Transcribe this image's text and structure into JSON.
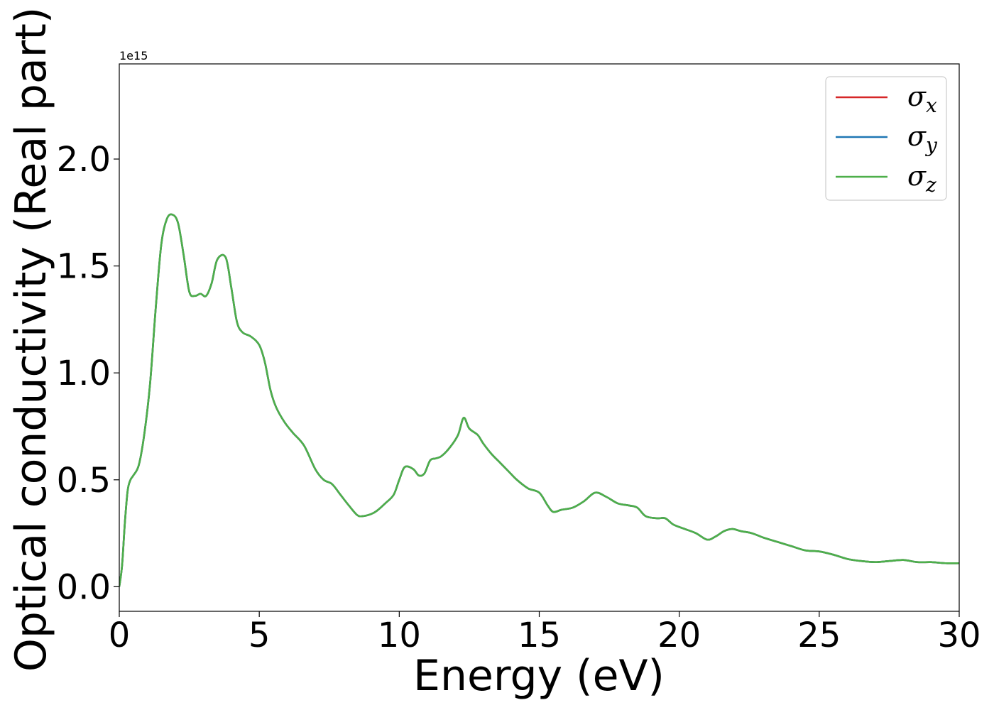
{
  "chart_data": {
    "type": "line",
    "title": "",
    "xlabel": "Energy (eV)",
    "ylabel": "Optical conductivity (Real part)",
    "y_offset_label": "1e15",
    "y_multiplier": 1000000000000000.0,
    "xlim": [
      0,
      30
    ],
    "ylim": [
      -0.115,
      2.445
    ],
    "x_ticks": [
      0,
      5,
      10,
      15,
      20,
      25,
      30
    ],
    "x_tick_labels": [
      "0",
      "5",
      "10",
      "15",
      "20",
      "25",
      "30"
    ],
    "y_ticks": [
      0.0,
      0.5,
      1.0,
      1.5,
      2.0
    ],
    "y_tick_labels": [
      "0.0",
      "0.5",
      "1.0",
      "1.5",
      "2.0"
    ],
    "grid": false,
    "legend": "top-right",
    "legend_entries": [
      {
        "base": "σ",
        "sub": "x",
        "color": "#d62728"
      },
      {
        "base": "σ",
        "sub": "y",
        "color": "#1f77b4"
      },
      {
        "base": "σ",
        "sub": "z",
        "color": "#4daf4a"
      }
    ],
    "x": [
      0,
      0.1,
      0.2,
      0.3,
      0.4,
      0.5,
      0.7,
      0.9,
      1.1,
      1.3,
      1.5,
      1.7,
      1.9,
      2.1,
      2.3,
      2.5,
      2.7,
      2.9,
      3.1,
      3.3,
      3.5,
      3.8,
      4.0,
      4.2,
      4.4,
      4.7,
      5.0,
      5.2,
      5.4,
      5.6,
      5.9,
      6.2,
      6.6,
      7.0,
      7.3,
      7.6,
      7.9,
      8.2,
      8.5,
      8.7,
      9.0,
      9.2,
      9.5,
      9.8,
      10.0,
      10.2,
      10.5,
      10.7,
      10.9,
      11.1,
      11.3,
      11.5,
      11.8,
      12.1,
      12.3,
      12.5,
      12.8,
      13.0,
      13.3,
      13.6,
      13.9,
      14.2,
      14.6,
      15.0,
      15.3,
      15.5,
      15.8,
      16.2,
      16.6,
      17.0,
      17.4,
      17.8,
      18.2,
      18.5,
      18.8,
      19.2,
      19.5,
      19.8,
      20.2,
      20.6,
      21.0,
      21.3,
      21.6,
      21.9,
      22.2,
      22.6,
      23.0,
      23.5,
      24.0,
      24.5,
      25.0,
      25.5,
      26.0,
      26.5,
      27.0,
      27.5,
      28.0,
      28.5,
      29.0,
      29.5,
      30.0
    ],
    "series": [
      {
        "name": "σx",
        "color": "#d62728",
        "values": [
          0.0,
          0.1,
          0.3,
          0.45,
          0.5,
          0.52,
          0.57,
          0.72,
          0.95,
          1.3,
          1.6,
          1.72,
          1.74,
          1.7,
          1.55,
          1.38,
          1.36,
          1.37,
          1.36,
          1.42,
          1.53,
          1.54,
          1.4,
          1.24,
          1.19,
          1.17,
          1.13,
          1.05,
          0.92,
          0.84,
          0.77,
          0.72,
          0.66,
          0.55,
          0.5,
          0.48,
          0.43,
          0.38,
          0.335,
          0.33,
          0.34,
          0.355,
          0.39,
          0.43,
          0.5,
          0.56,
          0.55,
          0.52,
          0.53,
          0.59,
          0.6,
          0.61,
          0.65,
          0.71,
          0.79,
          0.74,
          0.71,
          0.67,
          0.62,
          0.58,
          0.54,
          0.5,
          0.46,
          0.44,
          0.38,
          0.35,
          0.36,
          0.37,
          0.4,
          0.44,
          0.42,
          0.39,
          0.38,
          0.37,
          0.33,
          0.32,
          0.32,
          0.29,
          0.27,
          0.25,
          0.22,
          0.235,
          0.26,
          0.27,
          0.26,
          0.25,
          0.23,
          0.21,
          0.19,
          0.17,
          0.165,
          0.15,
          0.13,
          0.12,
          0.115,
          0.12,
          0.125,
          0.115,
          0.115,
          0.11,
          0.11
        ]
      },
      {
        "name": "σy",
        "color": "#1f77b4",
        "values": [
          0.0,
          0.1,
          0.3,
          0.45,
          0.5,
          0.52,
          0.57,
          0.72,
          0.95,
          1.3,
          1.6,
          1.72,
          1.74,
          1.7,
          1.55,
          1.38,
          1.36,
          1.37,
          1.36,
          1.42,
          1.53,
          1.54,
          1.4,
          1.24,
          1.19,
          1.17,
          1.13,
          1.05,
          0.92,
          0.84,
          0.77,
          0.72,
          0.66,
          0.55,
          0.5,
          0.48,
          0.43,
          0.38,
          0.335,
          0.33,
          0.34,
          0.355,
          0.39,
          0.43,
          0.5,
          0.56,
          0.55,
          0.52,
          0.53,
          0.59,
          0.6,
          0.61,
          0.65,
          0.71,
          0.79,
          0.74,
          0.71,
          0.67,
          0.62,
          0.58,
          0.54,
          0.5,
          0.46,
          0.44,
          0.38,
          0.35,
          0.36,
          0.37,
          0.4,
          0.44,
          0.42,
          0.39,
          0.38,
          0.37,
          0.33,
          0.32,
          0.32,
          0.29,
          0.27,
          0.25,
          0.22,
          0.235,
          0.26,
          0.27,
          0.26,
          0.25,
          0.23,
          0.21,
          0.19,
          0.17,
          0.165,
          0.15,
          0.13,
          0.12,
          0.115,
          0.12,
          0.125,
          0.115,
          0.115,
          0.11,
          0.11
        ]
      },
      {
        "name": "σz",
        "color": "#4daf4a",
        "values": [
          0.0,
          0.1,
          0.3,
          0.45,
          0.5,
          0.52,
          0.57,
          0.72,
          0.95,
          1.3,
          1.6,
          1.72,
          1.74,
          1.7,
          1.55,
          1.38,
          1.36,
          1.37,
          1.36,
          1.42,
          1.53,
          1.54,
          1.4,
          1.24,
          1.19,
          1.17,
          1.13,
          1.05,
          0.92,
          0.84,
          0.77,
          0.72,
          0.66,
          0.55,
          0.5,
          0.48,
          0.43,
          0.38,
          0.335,
          0.33,
          0.34,
          0.355,
          0.39,
          0.43,
          0.5,
          0.56,
          0.55,
          0.52,
          0.53,
          0.59,
          0.6,
          0.61,
          0.65,
          0.71,
          0.79,
          0.74,
          0.71,
          0.67,
          0.62,
          0.58,
          0.54,
          0.5,
          0.46,
          0.44,
          0.38,
          0.35,
          0.36,
          0.37,
          0.4,
          0.44,
          0.42,
          0.39,
          0.38,
          0.37,
          0.33,
          0.32,
          0.32,
          0.29,
          0.27,
          0.25,
          0.22,
          0.235,
          0.26,
          0.27,
          0.26,
          0.25,
          0.23,
          0.21,
          0.19,
          0.17,
          0.165,
          0.15,
          0.13,
          0.12,
          0.115,
          0.12,
          0.125,
          0.115,
          0.115,
          0.11,
          0.11
        ]
      }
    ]
  }
}
